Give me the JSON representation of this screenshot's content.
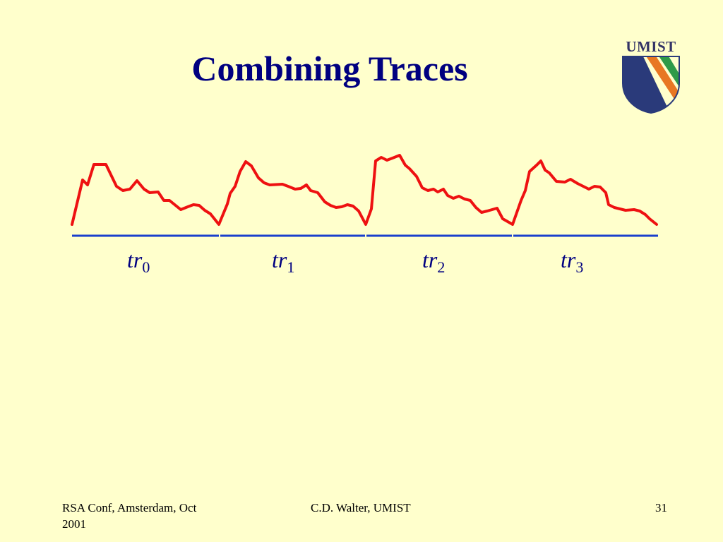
{
  "slide": {
    "title": "Combining Traces",
    "logo_text": "UMIST"
  },
  "traces": {
    "labels": [
      {
        "base": "tr",
        "sub": "0"
      },
      {
        "base": "tr",
        "sub": "1"
      },
      {
        "base": "tr",
        "sub": "2"
      },
      {
        "base": "tr",
        "sub": "3"
      }
    ],
    "trace_color": "#EE1111",
    "baseline_color": "#1A3FCC"
  },
  "footer": {
    "left": "RSA Conf, Amsterdam, Oct 2001",
    "center": "C.D. Walter, UMIST",
    "page_number": "31"
  },
  "colors": {
    "background": "#FFFFCC",
    "title": "#000080",
    "logo_blue": "#2A3A7A",
    "logo_orange": "#E87722",
    "logo_green": "#2E9A48"
  }
}
